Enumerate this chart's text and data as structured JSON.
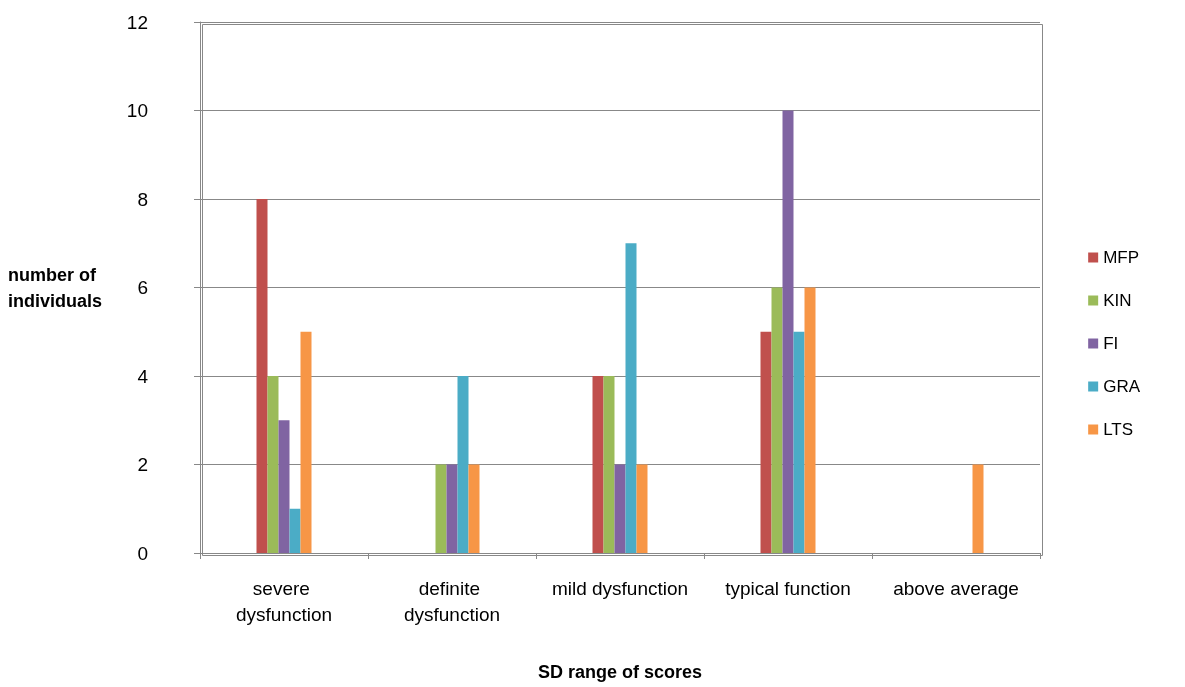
{
  "chart_data": {
    "type": "bar",
    "xlabel": "SD range of scores",
    "ylabel": "number of individuals",
    "categories": [
      "severe dysfunction",
      "definite dysfunction",
      "mild dysfunction",
      "typical function",
      "above average"
    ],
    "series": [
      {
        "name": "MFP",
        "color": "#c0504d",
        "values": [
          8,
          0,
          4,
          5,
          0
        ]
      },
      {
        "name": "KIN",
        "color": "#9bbb59",
        "values": [
          4,
          2,
          4,
          6,
          0
        ]
      },
      {
        "name": "FI",
        "color": "#8064a2",
        "values": [
          3,
          2,
          2,
          10,
          0
        ]
      },
      {
        "name": "GRA",
        "color": "#4bacc6",
        "values": [
          1,
          4,
          7,
          5,
          0
        ]
      },
      {
        "name": "LTS",
        "color": "#f79646",
        "values": [
          5,
          2,
          2,
          6,
          2
        ]
      }
    ],
    "ylim": [
      0,
      12
    ],
    "yticks": [
      0,
      2,
      4,
      6,
      8,
      10,
      12
    ],
    "grid": "y",
    "legend": "right"
  }
}
